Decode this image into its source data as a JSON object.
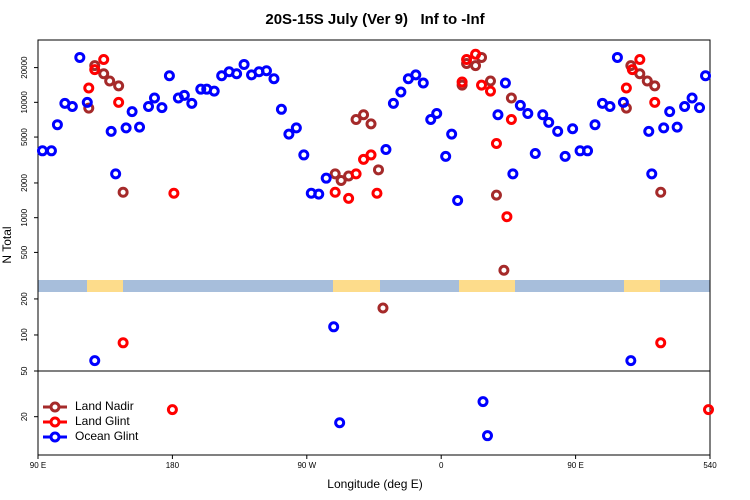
{
  "chart_data": {
    "type": "scatter",
    "title": "20S-15S July (Ver 9)   Inf to -Inf",
    "xlabel": "Longitude (deg E)",
    "ylabel": "N Total",
    "xlim": [
      90,
      540
    ],
    "xticks": [
      {
        "value": 90,
        "label": "90 E"
      },
      180,
      {
        "value": 270,
        "label": "90 W"
      },
      {
        "value": 360,
        "label": "0"
      },
      {
        "value": 450,
        "label": "90 E"
      },
      540
    ],
    "log_y": true,
    "legend": "lower left",
    "panels": [
      {
        "ylim": [
          277,
          34700
        ],
        "yticks": [
          500,
          1000,
          2000,
          5000,
          10000,
          20000
        ]
      },
      {
        "ylim": [
          50,
          277
        ],
        "yticks": [
          50,
          100,
          200
        ]
      },
      {
        "ylim": [
          9.6,
          48
        ],
        "yticks": [
          20
        ]
      }
    ],
    "series": [
      {
        "name": "Land Nadir",
        "color": "#a52a2a",
        "x": [
          124,
          128,
          134,
          138,
          144,
          147,
          289,
          293,
          298,
          303,
          308,
          313,
          318,
          321,
          374,
          377,
          383,
          387,
          393,
          397,
          402,
          407,
          484,
          487,
          493,
          498,
          503,
          507
        ],
        "values": [
          8900,
          20800,
          17700,
          15300,
          13900,
          1660,
          2400,
          2100,
          2300,
          7100,
          7800,
          6500,
          2600,
          168,
          14100,
          21700,
          20800,
          24500,
          15300,
          1570,
          350,
          10900,
          8900,
          20800,
          17700,
          15300,
          13900,
          1660
        ]
      },
      {
        "name": "Land Glint",
        "color": "#ff0000",
        "x": [
          124,
          128,
          134,
          144,
          147,
          180,
          181,
          289,
          298,
          303,
          308,
          313,
          317,
          374,
          377,
          383,
          387,
          393,
          397,
          404,
          407,
          484,
          488,
          493,
          503,
          507,
          539
        ],
        "values": [
          13300,
          19200,
          23500,
          10000,
          86,
          22.9,
          1630,
          1660,
          1470,
          2400,
          3200,
          3500,
          1630,
          15000,
          23500,
          26100,
          14100,
          12500,
          4400,
          1020,
          7100,
          13300,
          19200,
          23500,
          10000,
          86,
          22.9
        ]
      },
      {
        "name": "Ocean Glint",
        "color": "#0000ff",
        "x": [
          93,
          99,
          103,
          108,
          113,
          118,
          123,
          128,
          139,
          142,
          149,
          153,
          158,
          164,
          168,
          173,
          178,
          184,
          188,
          193,
          199,
          203,
          208,
          213,
          218,
          223,
          228,
          233,
          238,
          243,
          248,
          253,
          258,
          263,
          268,
          273,
          278,
          283,
          288,
          292,
          323,
          328,
          333,
          338,
          343,
          348,
          353,
          357,
          363,
          367,
          371,
          388,
          391,
          398,
          403,
          408,
          413,
          418,
          423,
          428,
          432,
          438,
          443,
          448,
          453,
          458,
          463,
          468,
          473,
          478,
          482,
          487,
          499,
          501,
          509,
          513,
          518,
          523,
          528,
          533,
          537
        ],
        "values": [
          3800,
          3800,
          6400,
          9800,
          9200,
          24500,
          10000,
          61,
          5600,
          2400,
          6000,
          8300,
          6100,
          9200,
          10900,
          9000,
          17000,
          10900,
          11500,
          9800,
          13000,
          13000,
          12500,
          17000,
          18400,
          17700,
          21300,
          17300,
          18400,
          18800,
          16000,
          8700,
          5300,
          6000,
          3500,
          1630,
          1600,
          2200,
          117,
          17.8,
          3900,
          9800,
          12300,
          16000,
          17300,
          14700,
          7100,
          8000,
          3400,
          5300,
          1410,
          26.7,
          13.9,
          7800,
          14700,
          2400,
          9400,
          8000,
          3600,
          7800,
          6700,
          5600,
          3400,
          5900,
          3800,
          3800,
          6400,
          9800,
          9200,
          24500,
          10000,
          61,
          5600,
          2400,
          6000,
          8300,
          6100,
          9200,
          10900,
          9000,
          17000
        ]
      }
    ]
  }
}
